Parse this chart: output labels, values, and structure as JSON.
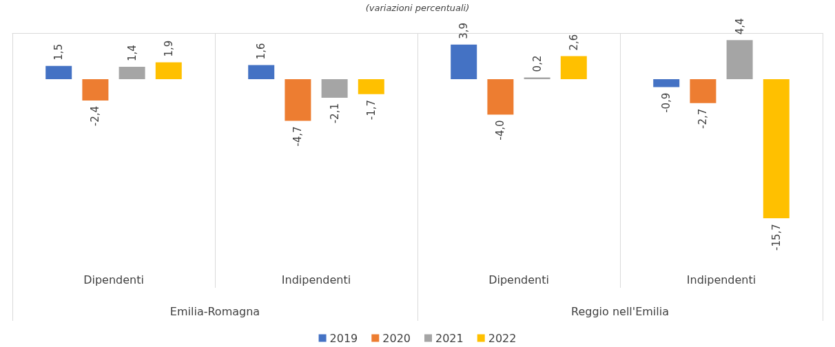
{
  "chart_data": {
    "type": "bar",
    "subtitle": "(variazioni percentuali)",
    "categories": [
      "Dipendenti",
      "Indipendenti",
      "Dipendenti",
      "Indipendenti"
    ],
    "annotations": [
      "Emilia-Romagna",
      "Reggio nell'Emilia"
    ],
    "series": [
      {
        "name": "2019",
        "color": "#4472c4",
        "values": [
          1.5,
          1.6,
          3.9,
          -0.9
        ],
        "value_labels": [
          "1,5",
          "1,6",
          "3,9",
          "-0,9"
        ]
      },
      {
        "name": "2020",
        "color": "#ed7d31",
        "values": [
          -2.4,
          -4.7,
          -4.0,
          -2.7
        ],
        "value_labels": [
          "-2,4",
          "-4,7",
          "-4,0",
          "-2,7"
        ]
      },
      {
        "name": "2021",
        "color": "#a5a5a5",
        "values": [
          1.4,
          -2.1,
          0.2,
          4.4
        ],
        "value_labels": [
          "1,4",
          "-2,1",
          "0,2",
          "4,4"
        ]
      },
      {
        "name": "2022",
        "color": "#ffc000",
        "values": [
          1.9,
          -1.7,
          2.6,
          -15.7
        ],
        "value_labels": [
          "1,9",
          "-1,7",
          "2,6",
          "-15,7"
        ]
      }
    ],
    "grid": "x",
    "legend": "bottom"
  }
}
